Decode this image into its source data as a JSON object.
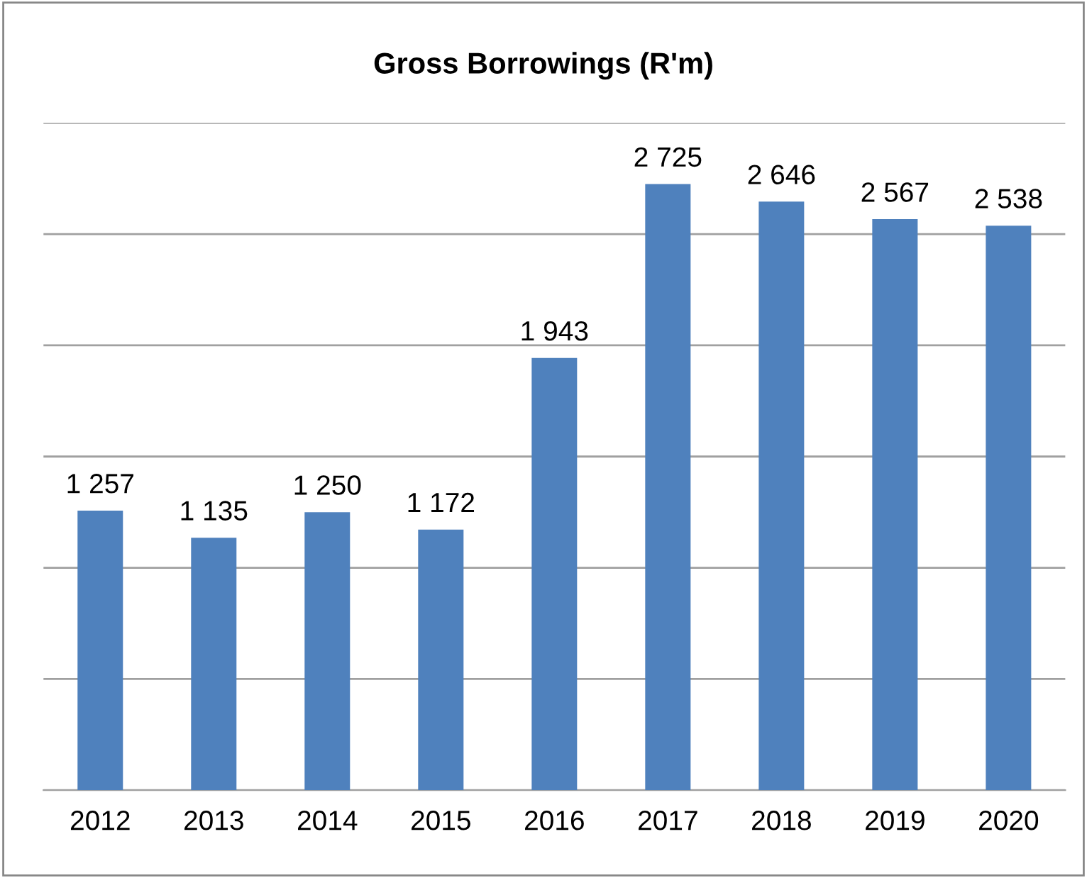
{
  "chart_data": {
    "type": "bar",
    "title": "Gross Borrowings (R'm)",
    "categories": [
      "2012",
      "2013",
      "2014",
      "2015",
      "2016",
      "2017",
      "2018",
      "2019",
      "2020"
    ],
    "values": [
      1257,
      1135,
      1250,
      1172,
      1943,
      2725,
      2646,
      2567,
      2538
    ],
    "value_labels": [
      "1 257",
      "1 135",
      "1 250",
      "1 172",
      "1 943",
      "2 725",
      "2 646",
      "2 567",
      "2 538"
    ],
    "color": "#4f81bd",
    "ylim": [
      0,
      3000
    ],
    "yticks": [
      {
        "value": 0,
        "label": null
      },
      {
        "value": 500,
        "label": null
      },
      {
        "value": 1000,
        "label": null
      },
      {
        "value": 1500,
        "label": null
      },
      {
        "value": 2000,
        "label": null
      },
      {
        "value": 2500,
        "label": null
      },
      {
        "value": 3000,
        "label": null
      }
    ],
    "grid": "y",
    "tick_labels": "x",
    "legend": false
  }
}
